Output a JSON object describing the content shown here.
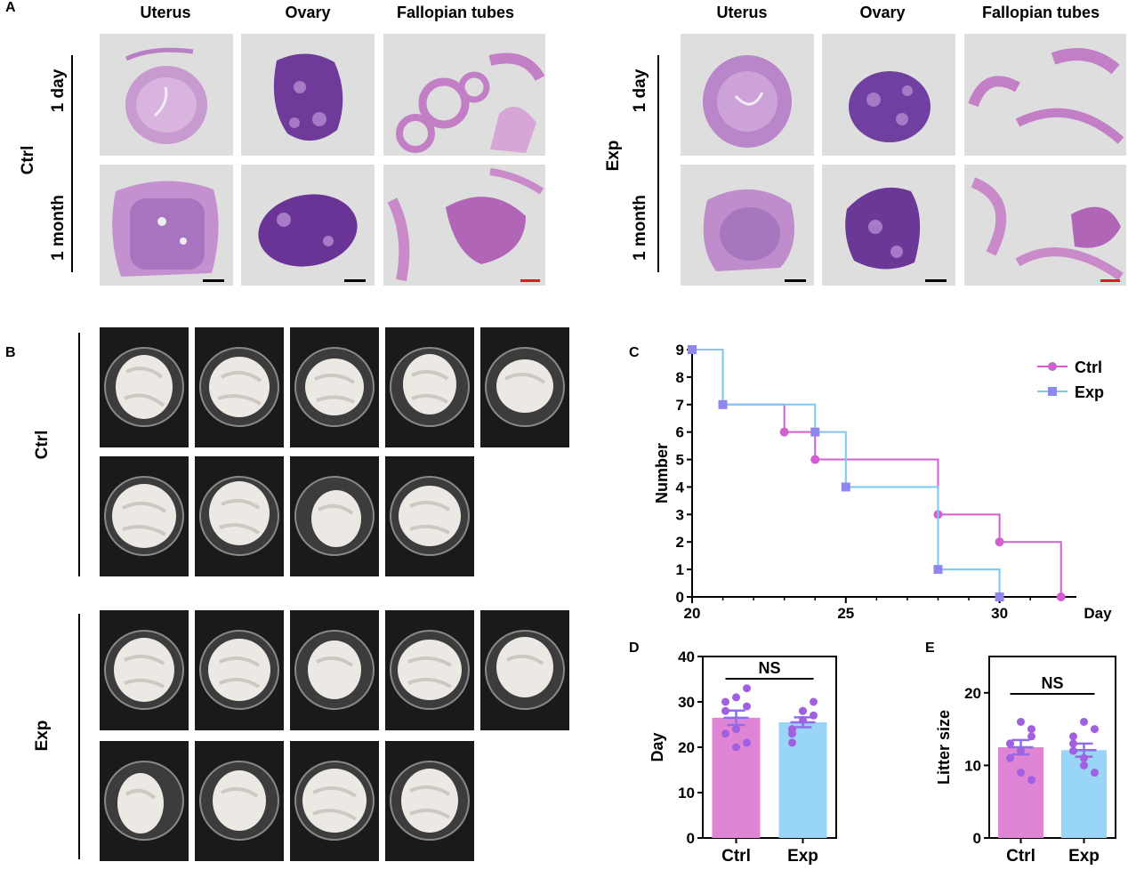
{
  "panel_a": {
    "letter": "A",
    "columns": [
      "Uterus",
      "Ovary",
      "Fallopian tubes"
    ],
    "rows": [
      "1 day",
      "1 month"
    ],
    "groups": [
      "Ctrl",
      "Exp"
    ]
  },
  "panel_b": {
    "letter": "B",
    "groups": [
      "Ctrl",
      "Exp"
    ]
  },
  "chart_data": [
    {
      "panel": "C",
      "type": "line",
      "step": true,
      "xlabel": "Day",
      "ylabel": "Number",
      "xlim": [
        20,
        32.5
      ],
      "ylim": [
        0,
        9
      ],
      "xticks": [
        "20",
        "25",
        "30",
        "Day"
      ],
      "yticks": [
        "0",
        "1",
        "2",
        "3",
        "4",
        "5",
        "6",
        "7",
        "8",
        "9"
      ],
      "legend_position": "top-right",
      "series": [
        {
          "name": "Ctrl",
          "color": "#d05fd0",
          "marker": "circle",
          "points": [
            [
              20,
              9
            ],
            [
              21,
              7
            ],
            [
              23,
              6
            ],
            [
              24,
              5
            ],
            [
              28,
              3
            ],
            [
              30,
              2
            ],
            [
              32,
              0
            ]
          ]
        },
        {
          "name": "Exp",
          "color": "#7ec8f0",
          "marker": "square",
          "points": [
            [
              20,
              9
            ],
            [
              21,
              7
            ],
            [
              24,
              6
            ],
            [
              25,
              4
            ],
            [
              28,
              1
            ],
            [
              30,
              0
            ]
          ]
        }
      ]
    },
    {
      "panel": "D",
      "type": "bar",
      "ylabel": "Day",
      "ylim": [
        0,
        40
      ],
      "yticks": [
        "0",
        "10",
        "20",
        "30",
        "40"
      ],
      "categories": [
        "Ctrl",
        "Exp"
      ],
      "values": [
        26.5,
        25.5
      ],
      "sem": [
        1.6,
        1.1
      ],
      "colors": [
        "#e085d6",
        "#99d5f7"
      ],
      "point_color": "#a060e0",
      "points": [
        [
          23,
          31,
          33,
          30,
          24,
          21,
          28,
          20,
          29
        ],
        [
          24,
          28,
          30,
          23,
          28,
          27,
          21,
          26
        ]
      ],
      "significance": "NS"
    },
    {
      "panel": "E",
      "type": "bar",
      "ylabel": "Litter size",
      "ylim": [
        0,
        25
      ],
      "yticks": [
        "0",
        "10",
        "20"
      ],
      "categories": [
        "Ctrl",
        "Exp"
      ],
      "values": [
        12.5,
        12.1
      ],
      "sem": [
        1.0,
        0.9
      ],
      "colors": [
        "#e085d6",
        "#99d5f7"
      ],
      "point_color": "#a060e0",
      "points": [
        [
          13,
          16,
          14,
          11,
          9,
          8,
          13,
          12,
          15
        ],
        [
          14,
          16,
          15,
          13,
          11,
          9,
          12,
          10
        ]
      ],
      "significance": "NS"
    }
  ]
}
